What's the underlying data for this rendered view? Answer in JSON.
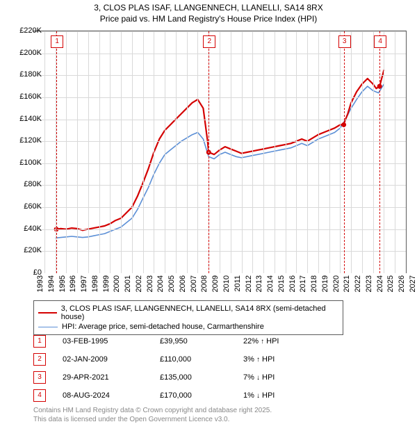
{
  "title_line1": "3, CLOS PLAS ISAF, LLANGENNECH, LLANELLI, SA14 8RX",
  "title_line2": "Price paid vs. HM Land Registry's House Price Index (HPI)",
  "chart": {
    "type": "line",
    "background_color": "#ffffff",
    "grid_color": "#d9d9d9",
    "axis_color": "#363636",
    "x_range": [
      1993,
      2027
    ],
    "y_range": [
      0,
      220000
    ],
    "y_ticks": [
      0,
      20000,
      40000,
      60000,
      80000,
      100000,
      120000,
      140000,
      160000,
      180000,
      200000,
      220000
    ],
    "y_tick_labels": [
      "£0",
      "£20K",
      "£40K",
      "£60K",
      "£80K",
      "£100K",
      "£120K",
      "£140K",
      "£160K",
      "£180K",
      "£200K",
      "£220K"
    ],
    "x_ticks": [
      1993,
      1994,
      1995,
      1996,
      1997,
      1998,
      1999,
      2000,
      2001,
      2002,
      2003,
      2004,
      2005,
      2006,
      2007,
      2008,
      2009,
      2010,
      2011,
      2012,
      2013,
      2014,
      2015,
      2016,
      2017,
      2018,
      2019,
      2020,
      2021,
      2022,
      2023,
      2024,
      2025,
      2026,
      2027
    ],
    "x_tick_labels": [
      "1993",
      "1994",
      "1995",
      "1996",
      "1997",
      "1998",
      "1999",
      "2000",
      "2001",
      "2002",
      "2003",
      "2004",
      "2005",
      "2006",
      "2007",
      "2008",
      "2009",
      "2010",
      "2011",
      "2012",
      "2013",
      "2014",
      "2015",
      "2016",
      "2017",
      "2018",
      "2019",
      "2020",
      "2021",
      "2022",
      "2023",
      "2024",
      "2025",
      "2026",
      "2027"
    ],
    "y_label_fontsize": 11,
    "x_label_fontsize": 11,
    "x_label_rotation": -90,
    "series": [
      {
        "name": "price_paid",
        "label": "3, CLOS PLAS ISAF, LLANGENNECH, LLANELLI, SA14 8RX (semi-detached house)",
        "color": "#d40000",
        "line_width": 2.2,
        "data": [
          [
            1995.1,
            39950
          ],
          [
            1995.5,
            40500
          ],
          [
            1996,
            40000
          ],
          [
            1996.5,
            41000
          ],
          [
            1997,
            40500
          ],
          [
            1997.5,
            39000
          ],
          [
            1998,
            40000
          ],
          [
            1998.5,
            41000
          ],
          [
            1999,
            42000
          ],
          [
            1999.5,
            43000
          ],
          [
            2000,
            45000
          ],
          [
            2000.5,
            48000
          ],
          [
            2001,
            50000
          ],
          [
            2001.5,
            55000
          ],
          [
            2002,
            60000
          ],
          [
            2002.5,
            70000
          ],
          [
            2003,
            82000
          ],
          [
            2003.5,
            95000
          ],
          [
            2004,
            110000
          ],
          [
            2004.5,
            122000
          ],
          [
            2005,
            130000
          ],
          [
            2005.5,
            135000
          ],
          [
            2006,
            140000
          ],
          [
            2006.5,
            145000
          ],
          [
            2007,
            150000
          ],
          [
            2007.5,
            155000
          ],
          [
            2008,
            158000
          ],
          [
            2008.5,
            150000
          ],
          [
            2008.9,
            120000
          ],
          [
            2009.0,
            110000
          ],
          [
            2009.5,
            108000
          ],
          [
            2010,
            112000
          ],
          [
            2010.5,
            115000
          ],
          [
            2011,
            113000
          ],
          [
            2011.5,
            111000
          ],
          [
            2012,
            109000
          ],
          [
            2012.5,
            110000
          ],
          [
            2013,
            111000
          ],
          [
            2013.5,
            112000
          ],
          [
            2014,
            113000
          ],
          [
            2014.5,
            114000
          ],
          [
            2015,
            115000
          ],
          [
            2015.5,
            116000
          ],
          [
            2016,
            117000
          ],
          [
            2016.5,
            118000
          ],
          [
            2017,
            120000
          ],
          [
            2017.5,
            122000
          ],
          [
            2018,
            120000
          ],
          [
            2018.5,
            123000
          ],
          [
            2019,
            126000
          ],
          [
            2019.5,
            128000
          ],
          [
            2020,
            130000
          ],
          [
            2020.5,
            132000
          ],
          [
            2021,
            135000
          ],
          [
            2021.3,
            135000
          ],
          [
            2021.7,
            145000
          ],
          [
            2022,
            155000
          ],
          [
            2022.5,
            165000
          ],
          [
            2023,
            172000
          ],
          [
            2023.5,
            177000
          ],
          [
            2024,
            172000
          ],
          [
            2024.3,
            168000
          ],
          [
            2024.6,
            170000
          ],
          [
            2025,
            185000
          ]
        ],
        "markers": [
          {
            "n": "1",
            "x": 1995.1,
            "y": 39950
          },
          {
            "n": "2",
            "x": 2009.0,
            "y": 110000
          },
          {
            "n": "3",
            "x": 2021.33,
            "y": 135000
          },
          {
            "n": "4",
            "x": 2024.6,
            "y": 170000
          }
        ]
      },
      {
        "name": "hpi",
        "label": "HPI: Average price, semi-detached house, Carmarthenshire",
        "color": "#5b8fd6",
        "line_width": 1.6,
        "data": [
          [
            1995,
            32000
          ],
          [
            1995.5,
            32500
          ],
          [
            1996,
            33000
          ],
          [
            1996.5,
            33500
          ],
          [
            1997,
            33000
          ],
          [
            1997.5,
            32500
          ],
          [
            1998,
            33000
          ],
          [
            1998.5,
            34000
          ],
          [
            1999,
            35000
          ],
          [
            1999.5,
            36000
          ],
          [
            2000,
            38000
          ],
          [
            2000.5,
            40000
          ],
          [
            2001,
            42000
          ],
          [
            2001.5,
            46000
          ],
          [
            2002,
            50000
          ],
          [
            2002.5,
            58000
          ],
          [
            2003,
            68000
          ],
          [
            2003.5,
            78000
          ],
          [
            2004,
            90000
          ],
          [
            2004.5,
            100000
          ],
          [
            2005,
            108000
          ],
          [
            2005.5,
            112000
          ],
          [
            2006,
            116000
          ],
          [
            2006.5,
            120000
          ],
          [
            2007,
            123000
          ],
          [
            2007.5,
            126000
          ],
          [
            2008,
            128000
          ],
          [
            2008.5,
            122000
          ],
          [
            2009,
            106000
          ],
          [
            2009.5,
            104000
          ],
          [
            2010,
            108000
          ],
          [
            2010.5,
            110000
          ],
          [
            2011,
            108000
          ],
          [
            2011.5,
            106000
          ],
          [
            2012,
            105000
          ],
          [
            2012.5,
            106000
          ],
          [
            2013,
            107000
          ],
          [
            2013.5,
            108000
          ],
          [
            2014,
            109000
          ],
          [
            2014.5,
            110000
          ],
          [
            2015,
            111000
          ],
          [
            2015.5,
            112000
          ],
          [
            2016,
            113000
          ],
          [
            2016.5,
            114000
          ],
          [
            2017,
            116000
          ],
          [
            2017.5,
            118000
          ],
          [
            2018,
            116000
          ],
          [
            2018.5,
            119000
          ],
          [
            2019,
            122000
          ],
          [
            2019.5,
            124000
          ],
          [
            2020,
            126000
          ],
          [
            2020.5,
            128000
          ],
          [
            2021,
            132000
          ],
          [
            2021.5,
            140000
          ],
          [
            2022,
            150000
          ],
          [
            2022.5,
            158000
          ],
          [
            2023,
            165000
          ],
          [
            2023.5,
            170000
          ],
          [
            2024,
            166000
          ],
          [
            2024.5,
            164000
          ],
          [
            2025,
            172000
          ]
        ]
      }
    ],
    "marker_line_color": "#d40000",
    "marker_badge_border": "#d40000",
    "marker_badge_text_color": "#d40000"
  },
  "legend": {
    "items": [
      {
        "color": "#d40000",
        "width": 2.2,
        "label": "3, CLOS PLAS ISAF, LLANGENNECH, LLANELLI, SA14 8RX (semi-detached house)"
      },
      {
        "color": "#5b8fd6",
        "width": 1.6,
        "label": "HPI: Average price, semi-detached house, Carmarthenshire"
      }
    ]
  },
  "transactions": [
    {
      "n": "1",
      "date": "03-FEB-1995",
      "price": "£39,950",
      "hpi_delta": "22%",
      "arrow": "↑",
      "suffix": "HPI"
    },
    {
      "n": "2",
      "date": "02-JAN-2009",
      "price": "£110,000",
      "hpi_delta": "3%",
      "arrow": "↑",
      "suffix": "HPI"
    },
    {
      "n": "3",
      "date": "29-APR-2021",
      "price": "£135,000",
      "hpi_delta": "7%",
      "arrow": "↓",
      "suffix": "HPI"
    },
    {
      "n": "4",
      "date": "08-AUG-2024",
      "price": "£170,000",
      "hpi_delta": "1%",
      "arrow": "↓",
      "suffix": "HPI"
    }
  ],
  "copyright_line1": "Contains HM Land Registry data © Crown copyright and database right 2025.",
  "copyright_line2": "This data is licensed under the Open Government Licence v3.0."
}
